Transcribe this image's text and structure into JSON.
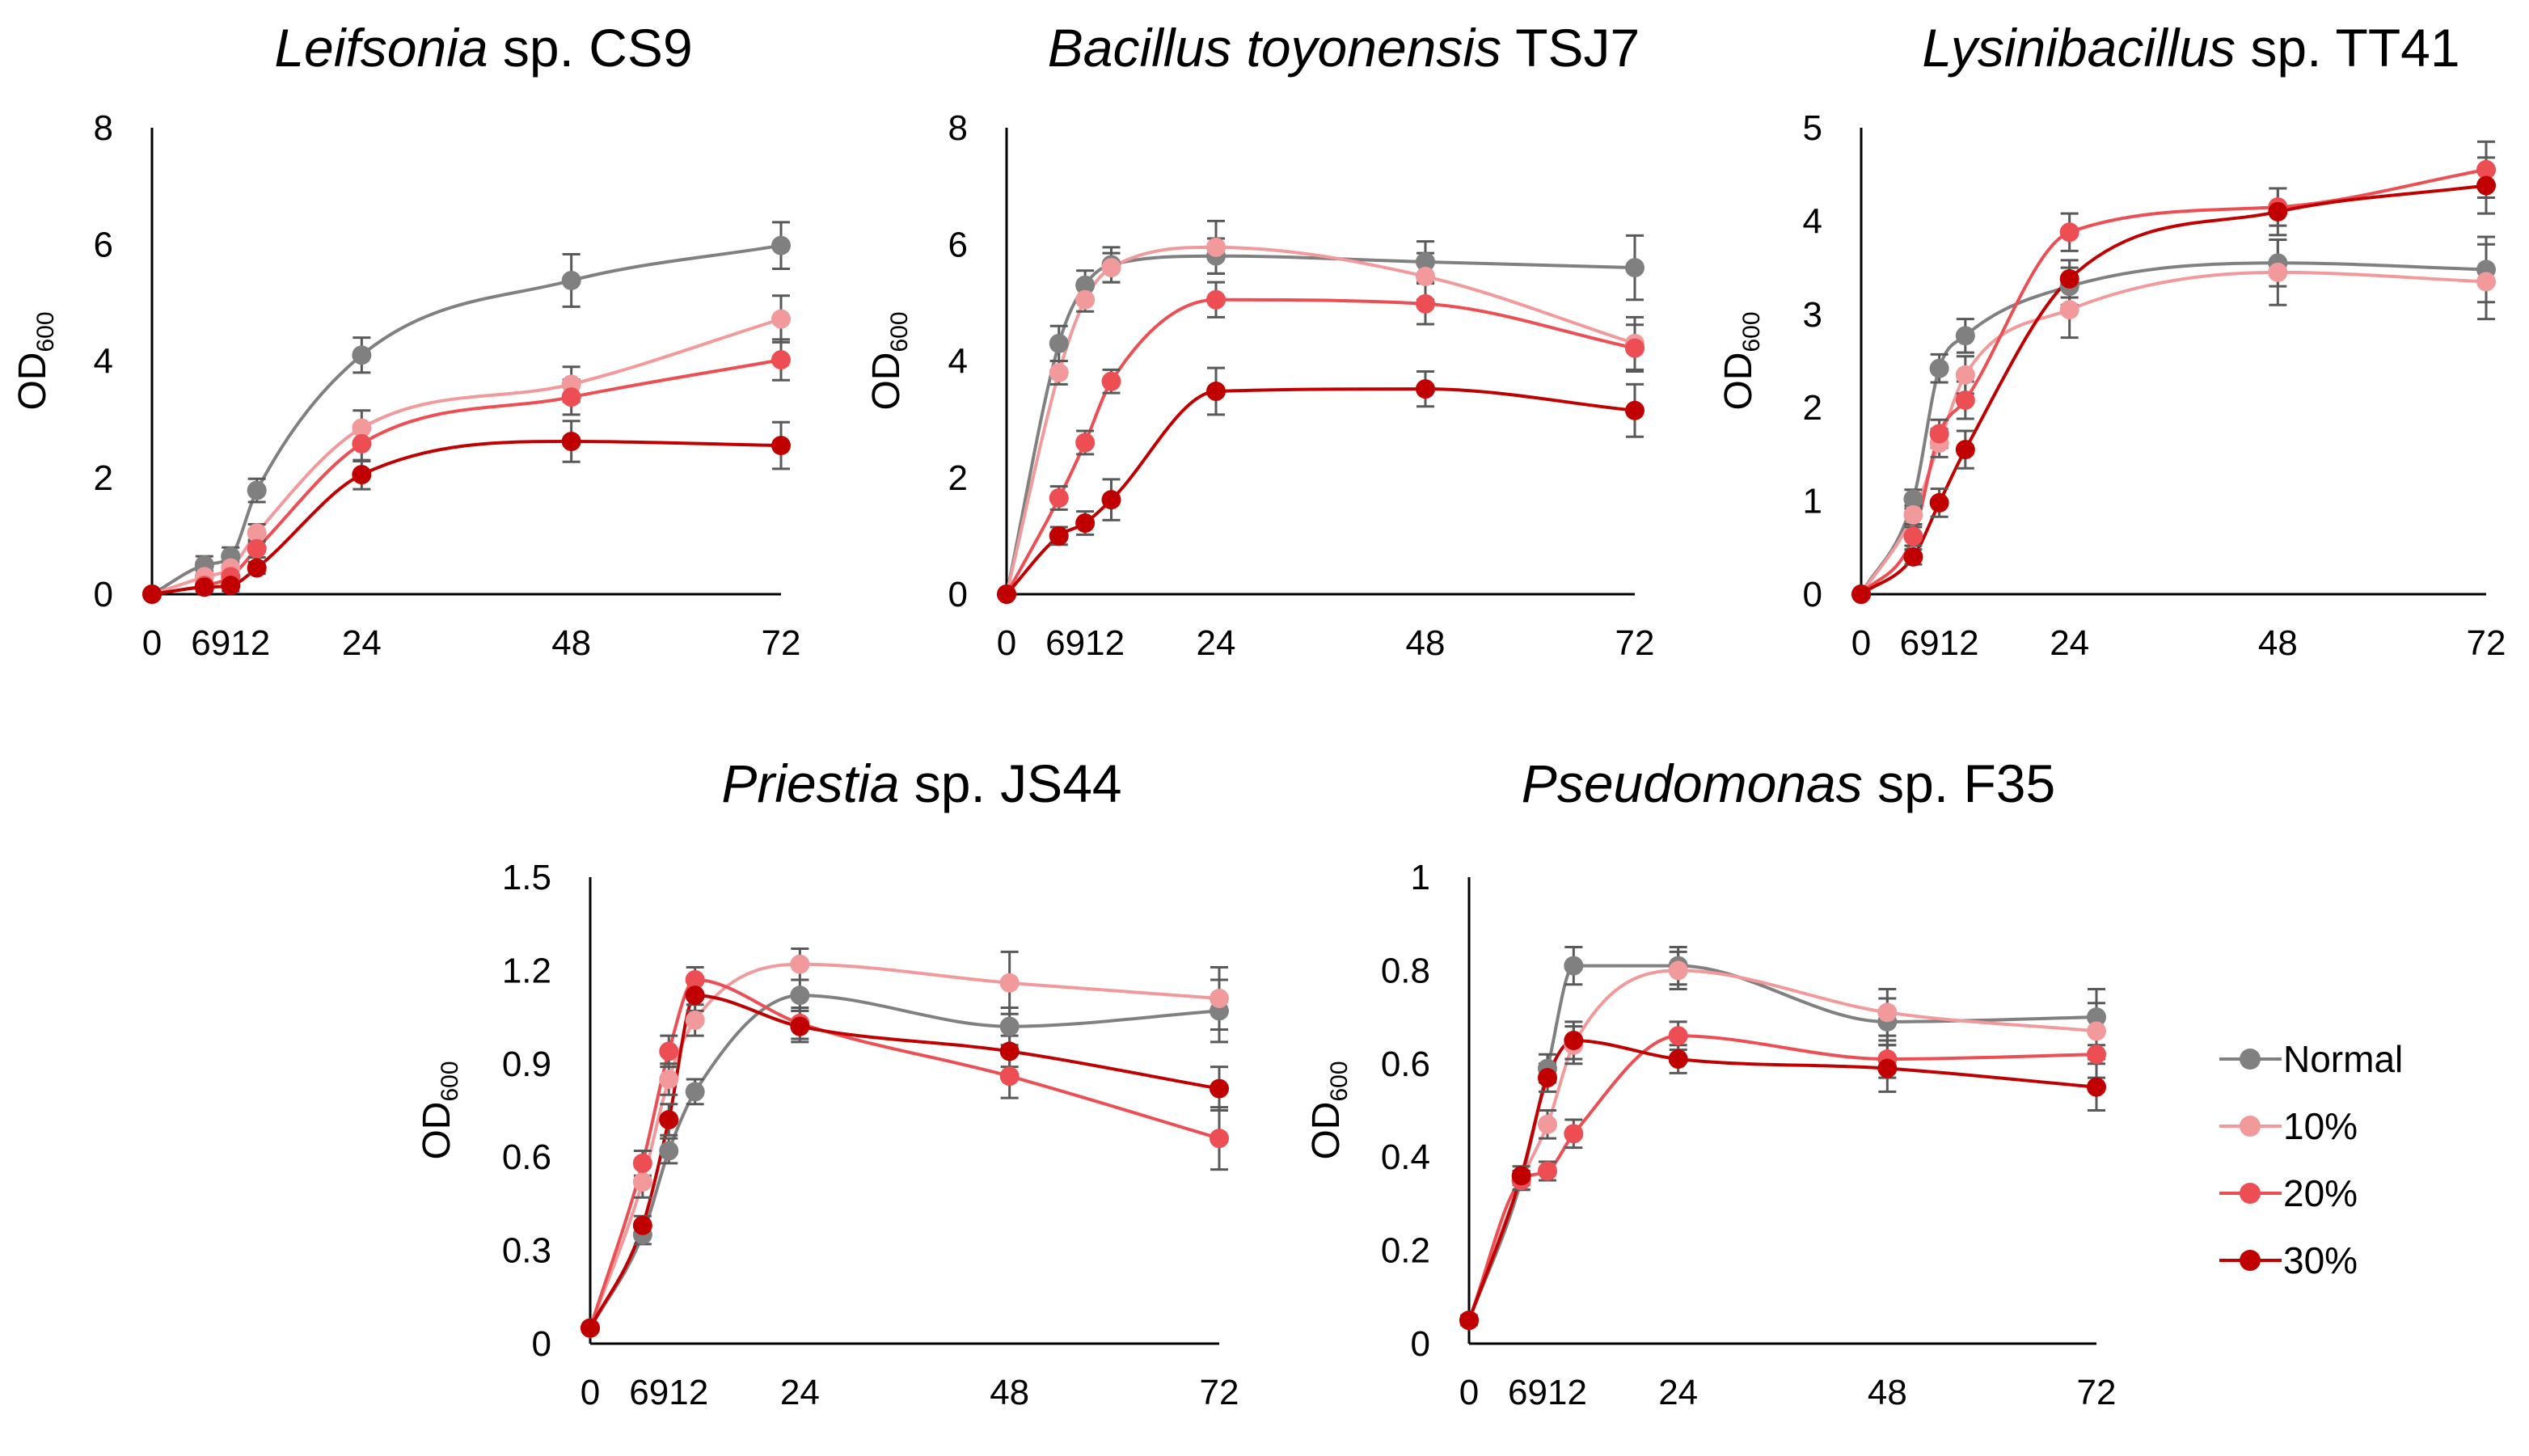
{
  "series_styles": [
    {
      "key": "normal",
      "color": "#808080"
    },
    {
      "key": "10",
      "color": "#f2999c"
    },
    {
      "key": "20",
      "color": "#ec4e53"
    },
    {
      "key": "30",
      "color": "#c00000"
    }
  ],
  "legend": [
    "Normal",
    "10%",
    "20%",
    "30%"
  ],
  "chart_data": [
    {
      "type": "line",
      "title_italic": "Leifsonia",
      "title_rest": " sp. CS9",
      "ylabel": "OD",
      "ylabel_sub": "600",
      "x": [
        0,
        6,
        9,
        12,
        24,
        48,
        72
      ],
      "xticks": [
        0,
        24,
        48,
        72
      ],
      "xtick_dense": "6912",
      "ylim": [
        0,
        8
      ],
      "yticks": [
        "0",
        "2",
        "4",
        "6",
        "8"
      ],
      "series": [
        {
          "name": "Normal",
          "values": [
            0.0,
            0.5,
            0.65,
            1.78,
            4.1,
            5.38,
            5.98
          ],
          "err": [
            0.05,
            0.15,
            0.15,
            0.2,
            0.3,
            0.45,
            0.4
          ]
        },
        {
          "name": "10%",
          "values": [
            0.0,
            0.3,
            0.45,
            1.05,
            2.85,
            3.6,
            4.72
          ],
          "err": [
            0.05,
            0.1,
            0.1,
            0.15,
            0.3,
            0.3,
            0.4
          ]
        },
        {
          "name": "20%",
          "values": [
            0.0,
            0.15,
            0.3,
            0.78,
            2.58,
            3.38,
            4.02
          ],
          "err": [
            0.05,
            0.1,
            0.1,
            0.15,
            0.3,
            0.3,
            0.35
          ]
        },
        {
          "name": "30%",
          "values": [
            0.0,
            0.12,
            0.15,
            0.45,
            2.05,
            2.62,
            2.55
          ],
          "err": [
            0.05,
            0.05,
            0.1,
            0.1,
            0.25,
            0.35,
            0.4
          ]
        }
      ]
    },
    {
      "type": "line",
      "title_italic": "Bacillus toyonensis",
      "title_rest": " TSJ7",
      "ylabel": "OD",
      "ylabel_sub": "600",
      "x": [
        0,
        6,
        9,
        12,
        24,
        48,
        72
      ],
      "xticks": [
        0,
        24,
        48,
        72
      ],
      "xtick_dense": "6912",
      "ylim": [
        0,
        8
      ],
      "yticks": [
        "0",
        "2",
        "4",
        "6",
        "8"
      ],
      "series": [
        {
          "name": "Normal",
          "values": [
            0.0,
            4.3,
            5.3,
            5.65,
            5.8,
            5.7,
            5.6
          ],
          "err": [
            0.05,
            0.3,
            0.25,
            0.3,
            0.3,
            0.35,
            0.55
          ]
        },
        {
          "name": "10%",
          "values": [
            0.0,
            3.8,
            5.05,
            5.6,
            5.95,
            5.45,
            4.3
          ],
          "err": [
            0.05,
            0.2,
            0.2,
            0.25,
            0.45,
            0.4,
            0.45
          ]
        },
        {
          "name": "20%",
          "values": [
            0.0,
            1.65,
            2.6,
            3.65,
            5.05,
            4.98,
            4.22
          ],
          "err": [
            0.05,
            0.2,
            0.2,
            0.2,
            0.3,
            0.35,
            0.4
          ]
        },
        {
          "name": "30%",
          "values": [
            0.0,
            1.0,
            1.22,
            1.62,
            3.48,
            3.52,
            3.15
          ],
          "err": [
            0.05,
            0.15,
            0.2,
            0.35,
            0.4,
            0.3,
            0.45
          ]
        }
      ]
    },
    {
      "type": "line",
      "title_italic": "Lysinibacillus",
      "title_rest": " sp. TT41",
      "ylabel": "OD",
      "ylabel_sub": "600",
      "x": [
        0,
        6,
        9,
        12,
        24,
        48,
        72
      ],
      "xticks": [
        0,
        24,
        48,
        72
      ],
      "xtick_dense": "6912",
      "ylim": [
        0,
        5
      ],
      "yticks": [
        "0",
        "1",
        "2",
        "3",
        "4",
        "5"
      ],
      "series": [
        {
          "name": "Normal",
          "values": [
            0.0,
            1.02,
            2.42,
            2.77,
            3.3,
            3.55,
            3.48
          ],
          "err": [
            0.03,
            0.1,
            0.15,
            0.18,
            0.2,
            0.25,
            0.35
          ]
        },
        {
          "name": "10%",
          "values": [
            0.0,
            0.85,
            1.62,
            2.35,
            3.05,
            3.45,
            3.35
          ],
          "err": [
            0.03,
            0.1,
            0.15,
            0.2,
            0.3,
            0.35,
            0.4
          ]
        },
        {
          "name": "20%",
          "values": [
            0.0,
            0.62,
            1.72,
            2.08,
            3.88,
            4.15,
            4.55
          ],
          "err": [
            0.03,
            0.1,
            0.15,
            0.2,
            0.2,
            0.2,
            0.3
          ]
        },
        {
          "name": "30%",
          "values": [
            0.0,
            0.4,
            0.98,
            1.55,
            3.38,
            4.1,
            4.38
          ],
          "err": [
            0.03,
            0.08,
            0.15,
            0.2,
            0.2,
            0.25,
            0.3
          ]
        }
      ]
    },
    {
      "type": "line",
      "title_italic": "Priestia",
      "title_rest": " sp. JS44",
      "ylabel": "OD",
      "ylabel_sub": "600",
      "x": [
        0,
        6,
        9,
        12,
        24,
        48,
        72
      ],
      "xticks": [
        0,
        24,
        48,
        72
      ],
      "xtick_dense": "6912",
      "ylim": [
        0,
        1.5
      ],
      "yticks": [
        "0",
        "0.3",
        "0.6",
        "0.9",
        "1.2",
        "1.5"
      ],
      "series": [
        {
          "name": "Normal",
          "values": [
            0.05,
            0.35,
            0.62,
            0.81,
            1.12,
            1.02,
            1.07
          ],
          "err": [
            0.01,
            0.03,
            0.04,
            0.04,
            0.05,
            0.06,
            0.1
          ]
        },
        {
          "name": "10%",
          "values": [
            0.05,
            0.52,
            0.85,
            1.04,
            1.22,
            1.16,
            1.11
          ],
          "err": [
            0.01,
            0.05,
            0.05,
            0.05,
            0.05,
            0.1,
            0.1
          ]
        },
        {
          "name": "20%",
          "values": [
            0.05,
            0.58,
            0.94,
            1.17,
            1.03,
            0.86,
            0.66
          ],
          "err": [
            0.01,
            0.04,
            0.05,
            0.04,
            0.05,
            0.07,
            0.1
          ]
        },
        {
          "name": "30%",
          "values": [
            0.05,
            0.38,
            0.72,
            1.12,
            1.02,
            0.94,
            0.82
          ],
          "err": [
            0.01,
            0.03,
            0.05,
            0.05,
            0.05,
            0.05,
            0.07
          ]
        }
      ]
    },
    {
      "type": "line",
      "title_italic": "Pseudomonas",
      "title_rest": " sp. F35",
      "ylabel": "OD",
      "ylabel_sub": "600",
      "x": [
        0,
        6,
        9,
        12,
        24,
        48,
        72
      ],
      "xticks": [
        0,
        24,
        48,
        72
      ],
      "xtick_dense": "6912",
      "ylim": [
        0,
        1
      ],
      "yticks": [
        "0",
        "0.2",
        "0.4",
        "0.6",
        "0.8",
        "1"
      ],
      "series": [
        {
          "name": "Normal",
          "values": [
            0.05,
            0.35,
            0.59,
            0.81,
            0.81,
            0.69,
            0.7
          ],
          "err": [
            0.01,
            0.02,
            0.03,
            0.04,
            0.04,
            0.05,
            0.06
          ]
        },
        {
          "name": "10%",
          "values": [
            0.05,
            0.35,
            0.47,
            0.64,
            0.8,
            0.71,
            0.67
          ],
          "err": [
            0.01,
            0.02,
            0.03,
            0.04,
            0.04,
            0.05,
            0.06
          ]
        },
        {
          "name": "20%",
          "values": [
            0.05,
            0.35,
            0.37,
            0.45,
            0.66,
            0.61,
            0.62
          ],
          "err": [
            0.01,
            0.02,
            0.02,
            0.03,
            0.03,
            0.04,
            0.05
          ]
        },
        {
          "name": "30%",
          "values": [
            0.05,
            0.36,
            0.57,
            0.65,
            0.61,
            0.59,
            0.55
          ],
          "err": [
            0.01,
            0.02,
            0.03,
            0.04,
            0.03,
            0.05,
            0.05
          ]
        }
      ]
    }
  ]
}
